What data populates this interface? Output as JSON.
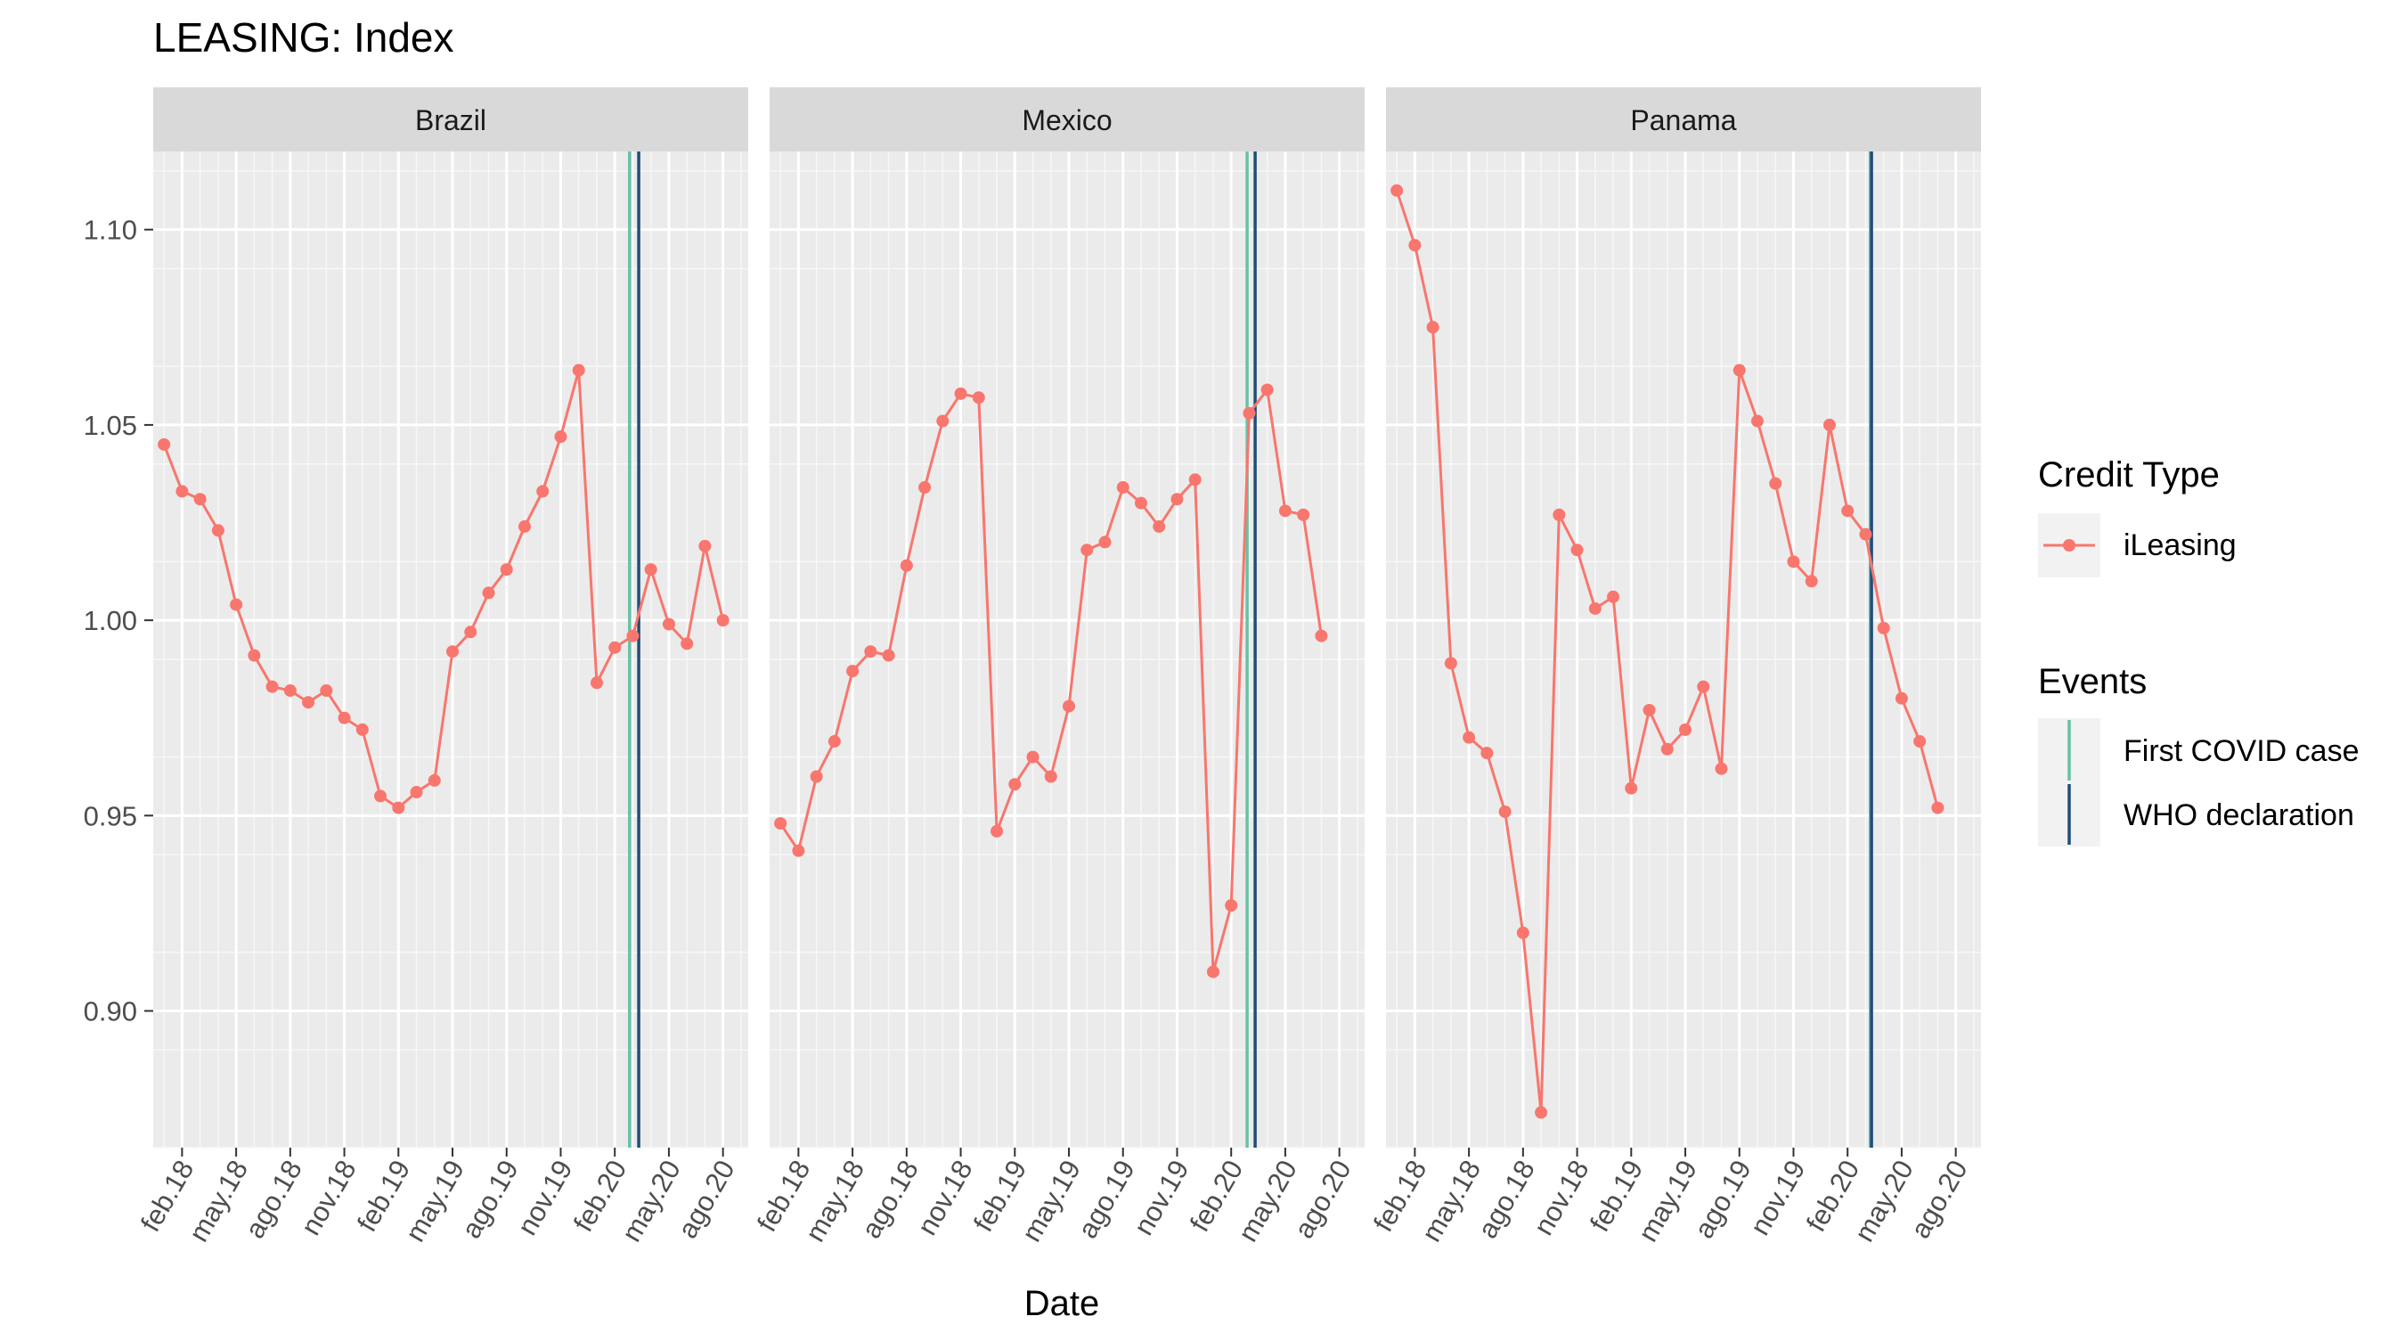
{
  "chart_data": {
    "type": "line",
    "title": "LEASING: Index",
    "xlabel": "Date",
    "ylabel": "",
    "ylim": [
      0.865,
      1.12
    ],
    "y_ticks": [
      0.9,
      0.95,
      1.0,
      1.05,
      1.1
    ],
    "y_tick_labels": [
      "0.90",
      "0.95",
      "1.00",
      "1.05",
      "1.10"
    ],
    "x_range": [
      "2018-01",
      "2020-09"
    ],
    "x_ticks": [
      {
        "date": "2018-02",
        "label": "feb.18"
      },
      {
        "date": "2018-05",
        "label": "may.18"
      },
      {
        "date": "2018-08",
        "label": "ago.18"
      },
      {
        "date": "2018-11",
        "label": "nov.18"
      },
      {
        "date": "2019-02",
        "label": "feb.19"
      },
      {
        "date": "2019-05",
        "label": "may.19"
      },
      {
        "date": "2019-08",
        "label": "ago.19"
      },
      {
        "date": "2019-11",
        "label": "nov.19"
      },
      {
        "date": "2020-02",
        "label": "feb.20"
      },
      {
        "date": "2020-05",
        "label": "may.20"
      },
      {
        "date": "2020-08",
        "label": "ago.20"
      }
    ],
    "grid": true,
    "legend_position": "right",
    "series_color": "#F8766D",
    "legend": {
      "credit_type": {
        "title": "Credit Type",
        "entries": [
          {
            "label": "iLeasing",
            "color": "#F8766D"
          }
        ]
      },
      "events": {
        "title": "Events",
        "entries": [
          {
            "label": "First COVID case",
            "color": "#66C2A5"
          },
          {
            "label": "WHO declaration",
            "color": "#1F4E79"
          }
        ]
      }
    },
    "facets": [
      {
        "name": "Brazil",
        "series_name": "iLeasing",
        "first_covid_case": "2020-02-26",
        "who_declaration": "2020-03-11",
        "x_start": "2018-01",
        "values": [
          1.045,
          1.033,
          1.031,
          1.023,
          1.004,
          0.991,
          0.983,
          0.982,
          0.979,
          0.982,
          0.975,
          0.972,
          0.955,
          0.952,
          0.956,
          0.959,
          0.992,
          0.997,
          1.007,
          1.013,
          1.024,
          1.033,
          1.047,
          1.064,
          0.984,
          0.993,
          0.996,
          1.013,
          0.999,
          0.994,
          1.019,
          1.0
        ]
      },
      {
        "name": "Mexico",
        "series_name": "iLeasing",
        "first_covid_case": "2020-02-28",
        "who_declaration": "2020-03-11",
        "x_start": "2018-01",
        "values": [
          0.948,
          0.941,
          0.96,
          0.969,
          0.987,
          0.992,
          0.991,
          1.014,
          1.034,
          1.051,
          1.058,
          1.057,
          0.946,
          0.958,
          0.965,
          0.96,
          0.978,
          1.018,
          1.02,
          1.034,
          1.03,
          1.024,
          1.031,
          1.036,
          0.91,
          0.927,
          1.053,
          1.059,
          1.028,
          1.027,
          0.996
        ]
      },
      {
        "name": "Panama",
        "series_name": "iLeasing",
        "first_covid_case": "2020-03-09",
        "who_declaration": "2020-03-11",
        "x_start": "2018-01",
        "values": [
          1.11,
          1.096,
          1.075,
          0.989,
          0.97,
          0.966,
          0.951,
          0.92,
          0.874,
          1.027,
          1.018,
          1.003,
          1.006,
          0.957,
          0.977,
          0.967,
          0.972,
          0.983,
          0.962,
          1.064,
          1.051,
          1.035,
          1.015,
          1.01,
          1.05,
          1.028,
          1.022,
          0.998,
          0.98,
          0.969,
          0.952
        ]
      }
    ]
  }
}
